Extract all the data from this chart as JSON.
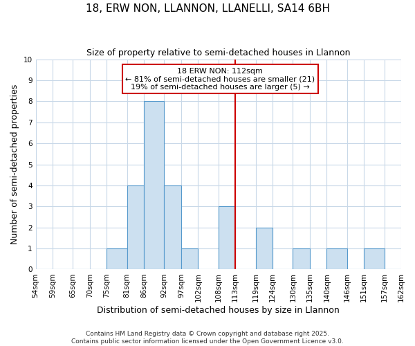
{
  "title": "18, ERW NON, LLANNON, LLANELLI, SA14 6BH",
  "subtitle": "Size of property relative to semi-detached houses in Llannon",
  "xlabel": "Distribution of semi-detached houses by size in Llannon",
  "ylabel": "Number of semi-detached properties",
  "bin_edges": [
    54,
    59,
    65,
    70,
    75,
    81,
    86,
    92,
    97,
    102,
    108,
    113,
    119,
    124,
    130,
    135,
    140,
    146,
    151,
    157,
    162
  ],
  "bar_heights": [
    0,
    0,
    0,
    0,
    1,
    4,
    8,
    4,
    1,
    0,
    3,
    0,
    2,
    0,
    1,
    0,
    1,
    0,
    1,
    0
  ],
  "bar_color": "#cce0f0",
  "bar_edge_color": "#5599cc",
  "grid_color": "#c8d8e8",
  "background_color": "#ffffff",
  "red_line_x": 113,
  "annotation_title": "18 ERW NON: 112sqm",
  "annotation_line1": "← 81% of semi-detached houses are smaller (21)",
  "annotation_line2": "19% of semi-detached houses are larger (5) →",
  "annotation_box_color": "#ffffff",
  "annotation_box_edge_color": "#cc0000",
  "red_line_color": "#cc0000",
  "ylim": [
    0,
    10
  ],
  "yticks": [
    0,
    1,
    2,
    3,
    4,
    5,
    6,
    7,
    8,
    9,
    10
  ],
  "footer_line1": "Contains HM Land Registry data © Crown copyright and database right 2025.",
  "footer_line2": "Contains public sector information licensed under the Open Government Licence v3.0.",
  "title_fontsize": 11,
  "subtitle_fontsize": 9,
  "axis_label_fontsize": 9,
  "tick_fontsize": 7.5,
  "annotation_fontsize": 8,
  "footer_fontsize": 6.5
}
